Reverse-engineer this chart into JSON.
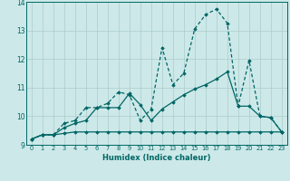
{
  "xlabel": "Humidex (Indice chaleur)",
  "bg_color": "#cde8e8",
  "grid_color": "#aacccc",
  "line_color": "#006666",
  "xlim": [
    -0.5,
    23.5
  ],
  "ylim": [
    9,
    14
  ],
  "yticks": [
    9,
    10,
    11,
    12,
    13,
    14
  ],
  "xticks": [
    0,
    1,
    2,
    3,
    4,
    5,
    6,
    7,
    8,
    9,
    10,
    11,
    12,
    13,
    14,
    15,
    16,
    17,
    18,
    19,
    20,
    21,
    22,
    23
  ],
  "series1_x": [
    0,
    1,
    2,
    3,
    4,
    5,
    6,
    7,
    8,
    9,
    10,
    11,
    12,
    13,
    14,
    15,
    16,
    17,
    18,
    19,
    20,
    21,
    22,
    23
  ],
  "series1_y": [
    9.2,
    9.35,
    9.35,
    9.4,
    9.45,
    9.45,
    9.45,
    9.45,
    9.45,
    9.45,
    9.45,
    9.45,
    9.45,
    9.45,
    9.45,
    9.45,
    9.45,
    9.45,
    9.45,
    9.45,
    9.45,
    9.45,
    9.45,
    9.45
  ],
  "series2_x": [
    0,
    1,
    2,
    3,
    4,
    5,
    6,
    7,
    8,
    9,
    10,
    11,
    12,
    13,
    14,
    15,
    16,
    17,
    18,
    19,
    20,
    21,
    22,
    23
  ],
  "series2_y": [
    9.2,
    9.35,
    9.35,
    9.75,
    9.85,
    10.3,
    10.3,
    10.45,
    10.85,
    10.75,
    9.85,
    10.25,
    12.4,
    11.1,
    11.5,
    13.05,
    13.55,
    13.75,
    13.25,
    10.35,
    11.95,
    10.0,
    9.95,
    9.45
  ],
  "series3_x": [
    0,
    1,
    2,
    3,
    4,
    5,
    6,
    7,
    8,
    9,
    10,
    11,
    12,
    13,
    14,
    15,
    16,
    17,
    18,
    19,
    20,
    21,
    22,
    23
  ],
  "series3_y": [
    9.2,
    9.35,
    9.35,
    9.6,
    9.75,
    9.85,
    10.3,
    10.3,
    10.3,
    10.8,
    10.4,
    9.85,
    10.25,
    10.5,
    10.75,
    10.95,
    11.1,
    11.3,
    11.55,
    10.35,
    10.35,
    10.0,
    9.95,
    9.45
  ]
}
